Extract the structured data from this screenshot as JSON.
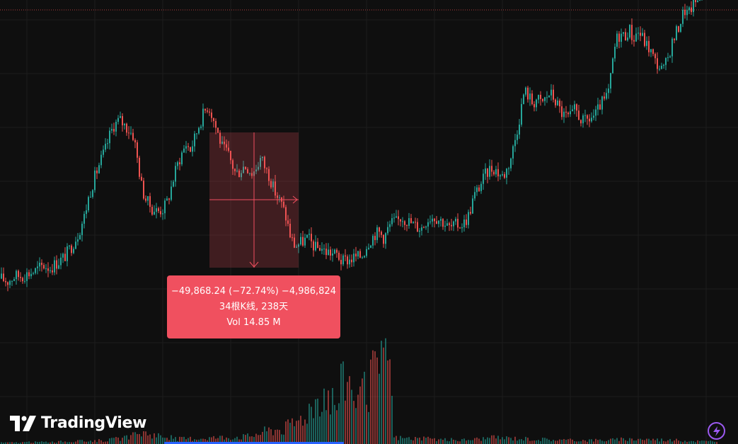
{
  "colors": {
    "background": "#0f0f0f",
    "grid": "#1c1c1c",
    "up": "#26a69a",
    "down": "#ef5350",
    "measure_fill": "#f0505f",
    "accent": "#2962ff",
    "bolt": "#9b59f0"
  },
  "measure": {
    "line1": "−49,868.24 (−72.74%) −4,986,824",
    "line2": "34根K线, 238天",
    "line3": "Vol 14.85 M"
  },
  "logo": {
    "text": "TradingView",
    "icon": "tradingview-logo-icon"
  },
  "bolt_icon": "lightning-bolt-icon",
  "chart_data": {
    "type": "candlestick",
    "title": "",
    "xlabel": "",
    "ylabel": "",
    "grid": true,
    "price_line": "dotted, at top",
    "close_path": [
      [
        0,
        0.07
      ],
      [
        10,
        0.06
      ],
      [
        20,
        0.08
      ],
      [
        30,
        0.08
      ],
      [
        40,
        0.09
      ],
      [
        50,
        0.1
      ],
      [
        60,
        0.12
      ],
      [
        70,
        0.11
      ],
      [
        80,
        0.13
      ],
      [
        90,
        0.15
      ],
      [
        100,
        0.19
      ],
      [
        110,
        0.24
      ],
      [
        118,
        0.3
      ],
      [
        125,
        0.38
      ],
      [
        132,
        0.44
      ],
      [
        140,
        0.5
      ],
      [
        148,
        0.55
      ],
      [
        155,
        0.61
      ],
      [
        160,
        0.64
      ],
      [
        168,
        0.66
      ],
      [
        175,
        0.64
      ],
      [
        182,
        0.62
      ],
      [
        188,
        0.6
      ],
      [
        194,
        0.5
      ],
      [
        200,
        0.4
      ],
      [
        206,
        0.36
      ],
      [
        214,
        0.33
      ],
      [
        222,
        0.32
      ],
      [
        230,
        0.33
      ],
      [
        236,
        0.36
      ],
      [
        242,
        0.42
      ],
      [
        248,
        0.48
      ],
      [
        255,
        0.53
      ],
      [
        262,
        0.57
      ],
      [
        268,
        0.55
      ],
      [
        274,
        0.59
      ],
      [
        280,
        0.64
      ],
      [
        286,
        0.68
      ],
      [
        292,
        0.71
      ],
      [
        296,
        0.7
      ],
      [
        302,
        0.65
      ],
      [
        308,
        0.6
      ],
      [
        314,
        0.55
      ],
      [
        320,
        0.54
      ],
      [
        326,
        0.5
      ],
      [
        332,
        0.46
      ],
      [
        338,
        0.47
      ],
      [
        344,
        0.49
      ],
      [
        350,
        0.48
      ],
      [
        356,
        0.46
      ],
      [
        362,
        0.49
      ],
      [
        368,
        0.52
      ],
      [
        374,
        0.48
      ],
      [
        380,
        0.45
      ],
      [
        386,
        0.4
      ],
      [
        392,
        0.37
      ],
      [
        398,
        0.34
      ],
      [
        404,
        0.29
      ],
      [
        410,
        0.22
      ],
      [
        416,
        0.19
      ],
      [
        422,
        0.2
      ],
      [
        428,
        0.21
      ],
      [
        434,
        0.22
      ],
      [
        440,
        0.2
      ],
      [
        446,
        0.18
      ],
      [
        452,
        0.19
      ],
      [
        458,
        0.17
      ],
      [
        464,
        0.17
      ],
      [
        470,
        0.16
      ],
      [
        476,
        0.16
      ],
      [
        482,
        0.13
      ],
      [
        488,
        0.14
      ],
      [
        494,
        0.14
      ],
      [
        500,
        0.15
      ],
      [
        506,
        0.15
      ],
      [
        512,
        0.16
      ],
      [
        518,
        0.2
      ],
      [
        524,
        0.22
      ],
      [
        530,
        0.24
      ],
      [
        536,
        0.24
      ],
      [
        542,
        0.22
      ],
      [
        548,
        0.26
      ],
      [
        554,
        0.28
      ],
      [
        560,
        0.28
      ],
      [
        566,
        0.3
      ],
      [
        572,
        0.29
      ],
      [
        578,
        0.28
      ],
      [
        584,
        0.27
      ],
      [
        590,
        0.26
      ],
      [
        596,
        0.26
      ],
      [
        602,
        0.29
      ],
      [
        608,
        0.3
      ],
      [
        614,
        0.3
      ],
      [
        620,
        0.29
      ],
      [
        626,
        0.28
      ],
      [
        632,
        0.26
      ],
      [
        638,
        0.26
      ],
      [
        644,
        0.27
      ],
      [
        650,
        0.27
      ],
      [
        656,
        0.28
      ],
      [
        662,
        0.31
      ],
      [
        668,
        0.37
      ],
      [
        674,
        0.4
      ],
      [
        680,
        0.43
      ],
      [
        686,
        0.46
      ],
      [
        692,
        0.48
      ],
      [
        698,
        0.48
      ],
      [
        704,
        0.46
      ],
      [
        710,
        0.45
      ],
      [
        716,
        0.48
      ],
      [
        722,
        0.53
      ],
      [
        728,
        0.6
      ],
      [
        734,
        0.68
      ],
      [
        740,
        0.77
      ],
      [
        746,
        0.75
      ],
      [
        752,
        0.72
      ],
      [
        758,
        0.74
      ],
      [
        764,
        0.72
      ],
      [
        770,
        0.74
      ],
      [
        776,
        0.76
      ],
      [
        782,
        0.74
      ],
      [
        788,
        0.71
      ],
      [
        794,
        0.68
      ],
      [
        800,
        0.67
      ],
      [
        806,
        0.67
      ],
      [
        812,
        0.7
      ],
      [
        818,
        0.67
      ],
      [
        824,
        0.65
      ],
      [
        830,
        0.66
      ],
      [
        836,
        0.67
      ],
      [
        842,
        0.68
      ],
      [
        848,
        0.72
      ],
      [
        854,
        0.73
      ],
      [
        860,
        0.77
      ],
      [
        866,
        0.9
      ],
      [
        870,
        0.96
      ],
      [
        876,
        0.98
      ],
      [
        882,
        0.97
      ],
      [
        888,
        1.0
      ],
      [
        894,
        0.96
      ],
      [
        900,
        0.99
      ],
      [
        906,
        0.97
      ],
      [
        912,
        0.94
      ],
      [
        918,
        0.92
      ],
      [
        924,
        0.88
      ],
      [
        930,
        0.86
      ],
      [
        936,
        0.84
      ],
      [
        942,
        0.88
      ],
      [
        948,
        0.94
      ],
      [
        954,
        0.98
      ],
      [
        960,
        1.02
      ],
      [
        966,
        1.07
      ],
      [
        972,
        1.05
      ],
      [
        978,
        1.09
      ],
      [
        984,
        1.1
      ],
      [
        990,
        1.14
      ],
      [
        996,
        1.2
      ],
      [
        1002,
        1.22
      ],
      [
        1008,
        1.2
      ],
      [
        1014,
        1.19
      ]
    ],
    "volume_path": [
      [
        0,
        0.01
      ],
      [
        100,
        0.02
      ],
      [
        150,
        0.03
      ],
      [
        180,
        0.05
      ],
      [
        200,
        0.09
      ],
      [
        220,
        0.07
      ],
      [
        250,
        0.04
      ],
      [
        300,
        0.05
      ],
      [
        350,
        0.06
      ],
      [
        380,
        0.11
      ],
      [
        400,
        0.12
      ],
      [
        420,
        0.18
      ],
      [
        440,
        0.3
      ],
      [
        455,
        0.42
      ],
      [
        465,
        0.38
      ],
      [
        475,
        0.3
      ],
      [
        485,
        0.55
      ],
      [
        495,
        0.48
      ],
      [
        505,
        0.36
      ],
      [
        515,
        0.4
      ],
      [
        525,
        0.5
      ],
      [
        535,
        0.58
      ],
      [
        545,
        0.62
      ],
      [
        549,
        0.9
      ],
      [
        555,
        0.05
      ],
      [
        600,
        0.04
      ],
      [
        650,
        0.03
      ],
      [
        700,
        0.05
      ],
      [
        750,
        0.04
      ],
      [
        800,
        0.03
      ],
      [
        850,
        0.03
      ],
      [
        900,
        0.04
      ],
      [
        950,
        0.03
      ],
      [
        1000,
        0.02
      ],
      [
        1014,
        0.03
      ]
    ]
  }
}
